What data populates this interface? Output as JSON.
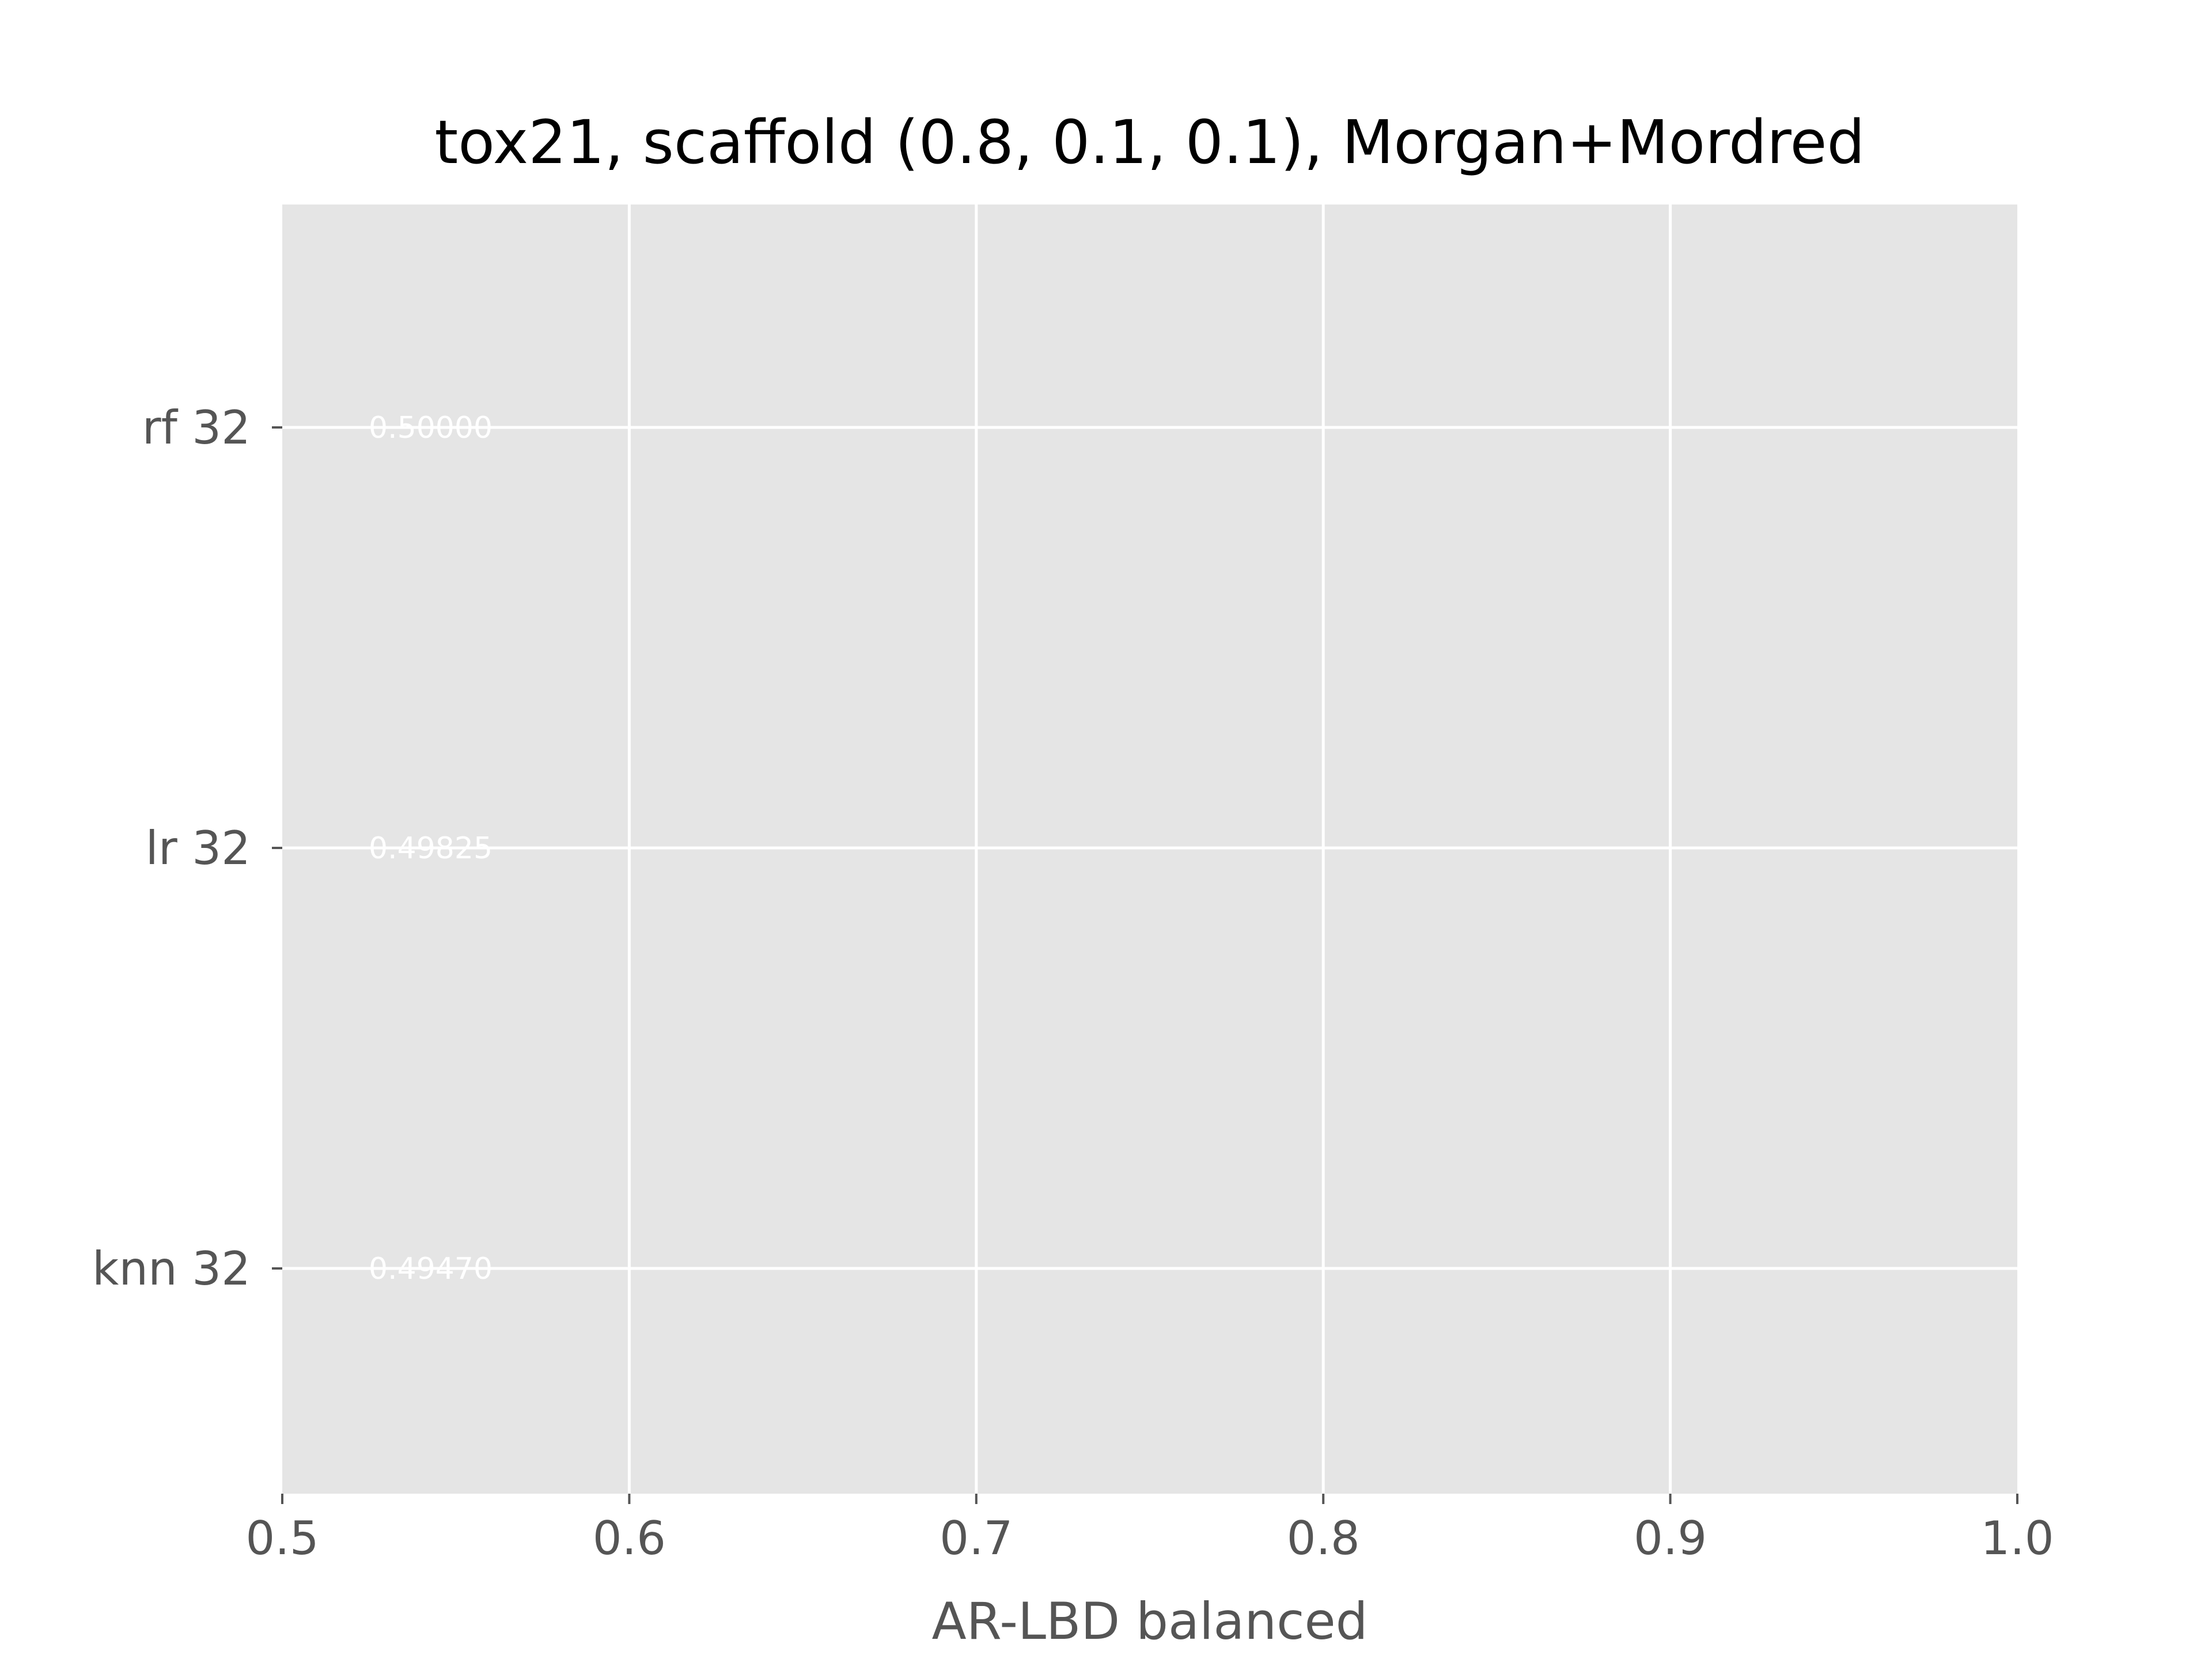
{
  "chart_data": {
    "type": "bar",
    "orientation": "horizontal",
    "title": "tox21, scaffold (0.8, 0.1, 0.1), Morgan+Mordred",
    "xlabel": "AR-LBD balanced",
    "ylabel": "",
    "categories": [
      "rf 32",
      "lr 32",
      "knn 32"
    ],
    "values": [
      0.5,
      0.49825,
      0.4947
    ],
    "value_labels": [
      "0.50000",
      "0.49825",
      "0.49470"
    ],
    "xlim": [
      0.5,
      1.0
    ],
    "xticks": [
      "0.5",
      "0.6",
      "0.7",
      "0.8",
      "0.9",
      "1.0"
    ],
    "grid": true,
    "style": "ggplot",
    "colors": {
      "plot_background": "#e5e5e5",
      "grid": "#ffffff",
      "tick_text": "#555555",
      "title_text": "#000000",
      "data_label_text": "#ffffff"
    }
  }
}
